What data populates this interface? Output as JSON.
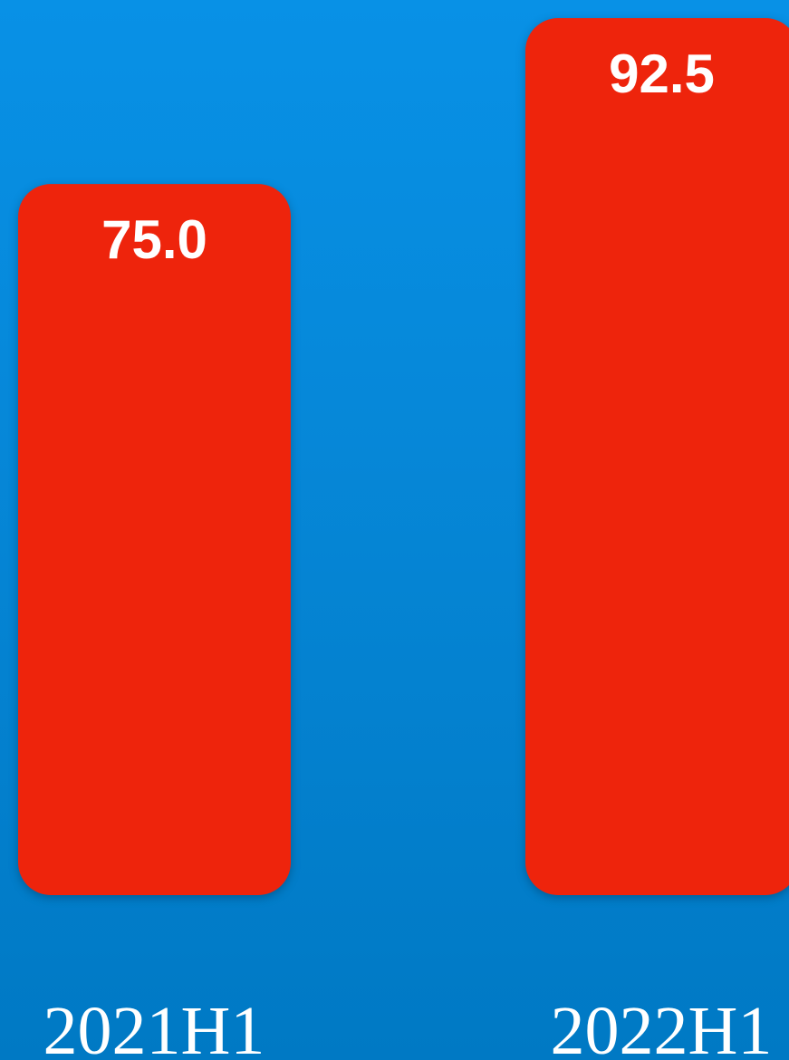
{
  "chart_data": {
    "type": "bar",
    "categories": [
      "2021H1",
      "2022H1"
    ],
    "values": [
      75.0,
      92.5
    ],
    "value_labels": [
      "75.0",
      "92.5"
    ],
    "title": "",
    "xlabel": "",
    "ylabel": "",
    "ylim": [
      0,
      92.5
    ],
    "grid": false,
    "legend": "none",
    "colors": {
      "bar": "#ee240c",
      "background_top": "#0891e6",
      "background_bottom": "#0079c4",
      "text": "#ffffff"
    }
  }
}
